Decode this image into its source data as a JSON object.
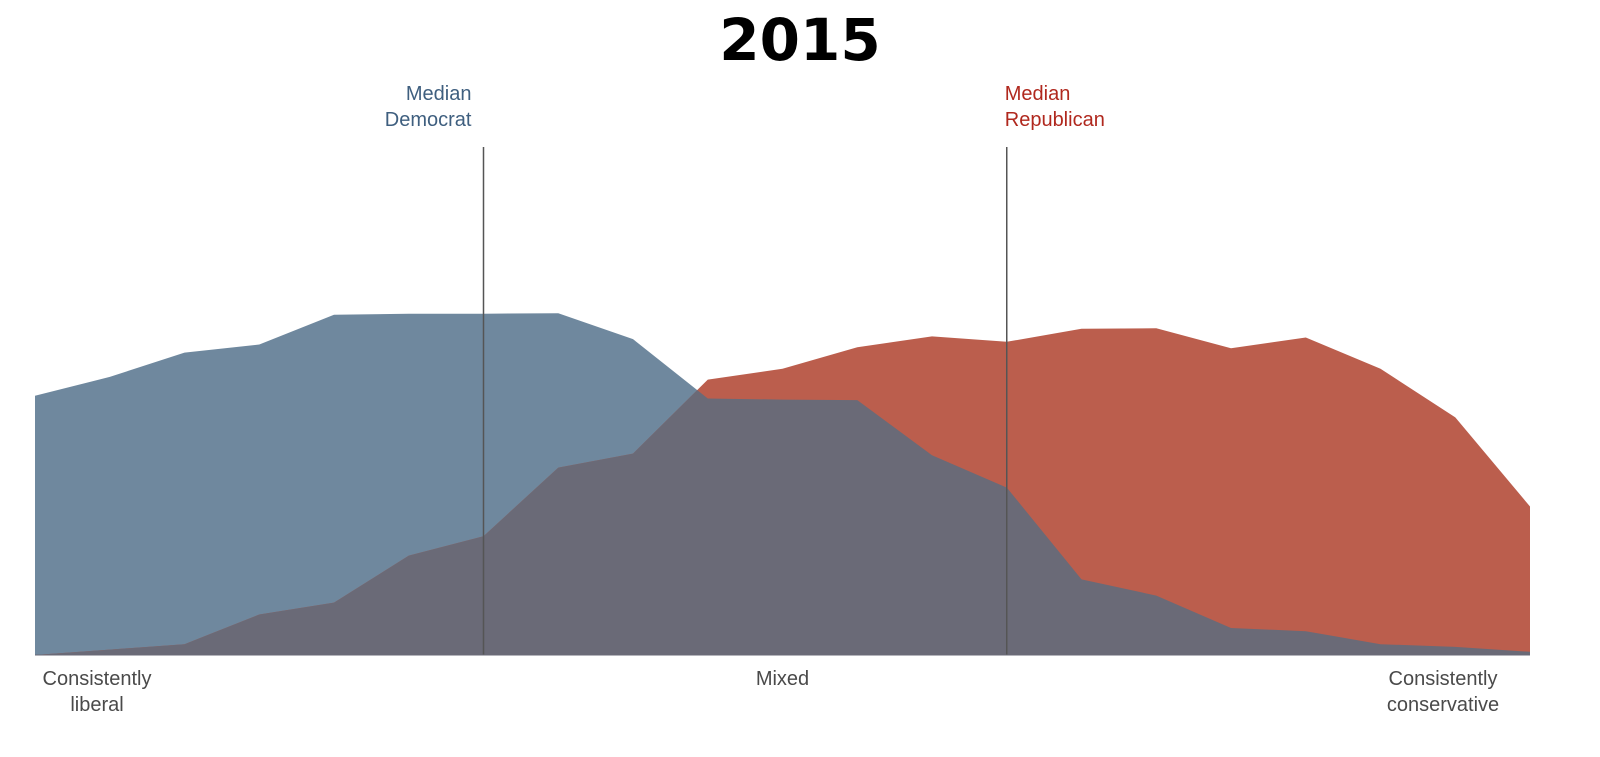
{
  "chart_data": {
    "type": "area",
    "title": "2015",
    "x": [
      0,
      1,
      2,
      3,
      4,
      5,
      6,
      7,
      8,
      9,
      10,
      11,
      12,
      13,
      14,
      15,
      16,
      17,
      18,
      19,
      20
    ],
    "x_tick_labels": [
      {
        "x": 0,
        "lines": [
          "Consistently",
          "liberal"
        ]
      },
      {
        "x": 10,
        "lines": [
          "Mixed"
        ]
      },
      {
        "x": 20,
        "lines": [
          "Consistently",
          "conservative"
        ]
      }
    ],
    "ylim": [
      0,
      100
    ],
    "series": [
      {
        "key": "democrats",
        "values": [
          48,
          51.5,
          56,
          57.5,
          63,
          63.2,
          63.2,
          63.3,
          58.5,
          47.5,
          47.3,
          47.2,
          37,
          31,
          14,
          11,
          5,
          4.4,
          2,
          1.5,
          0.6
        ],
        "color": "#6f889e"
      },
      {
        "key": "republicans",
        "values": [
          0,
          1,
          2,
          7.5,
          9.7,
          18.4,
          22,
          34.7,
          37.3,
          51,
          53,
          57,
          59,
          58,
          60.4,
          60.5,
          56.8,
          58.8,
          53,
          44,
          27.5
        ],
        "color": "#bb5e4d"
      }
    ],
    "overlap_color": "#6a6a77",
    "medians": [
      {
        "x": 6,
        "lines": [
          "Median",
          "Democrat"
        ],
        "color": "#3f5f7f",
        "anchor": "end"
      },
      {
        "x": 13,
        "lines": [
          "Median",
          "Republican"
        ],
        "color": "#b0281e",
        "anchor": "start"
      }
    ],
    "grid": false,
    "legend": "none"
  }
}
